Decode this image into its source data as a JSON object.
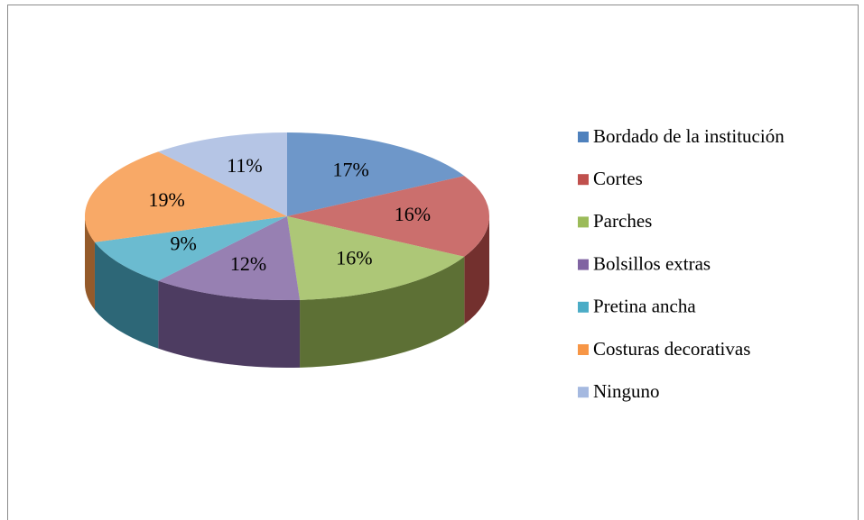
{
  "chart_data": {
    "type": "pie3d",
    "categories": [
      "Bordado de la institución",
      "Cortes",
      "Parches",
      "Bolsillos extras",
      "Pretina ancha",
      "Costuras decorativas",
      "Ninguno"
    ],
    "values": [
      17,
      16,
      16,
      12,
      9,
      19,
      11
    ],
    "value_labels": [
      "17%",
      "16%",
      "16%",
      "12%",
      "9%",
      "19%",
      "11%"
    ],
    "colors": [
      "#4f81bd",
      "#c0504d",
      "#9bbb59",
      "#8064a2",
      "#4bacc6",
      "#f79646",
      "#a5b9e0"
    ],
    "legend": "right"
  }
}
